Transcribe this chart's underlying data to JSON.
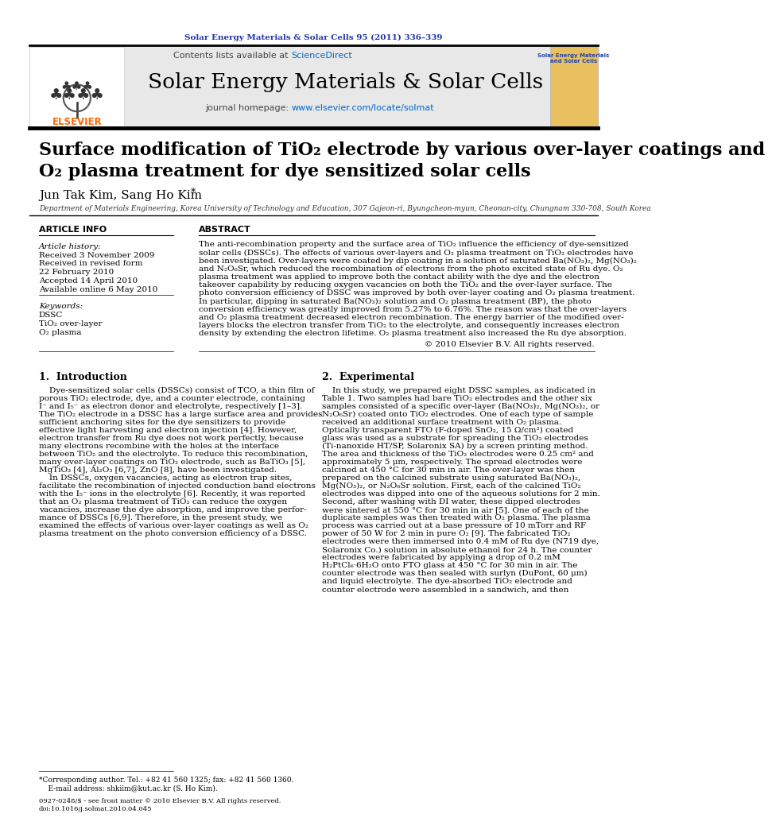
{
  "journal_ref": "Solar Energy Materials & Solar Cells 95 (2011) 336–339",
  "journal_name": "Solar Energy Materials & Solar Cells",
  "title_line1": "Surface modification of TiO₂ electrode by various over-layer coatings and",
  "title_line2": "O₂ plasma treatment for dye sensitized solar cells",
  "authors": "Jun Tak Kim, Sang Ho Kim",
  "affiliation": "Department of Materials Engineering, Korea University of Technology and Education, 307 Gajeon-ri, Byungcheon-myun, Cheonan-city, Chungnam 330-708, South Korea",
  "article_info_header": "ARTICLE INFO",
  "abstract_header": "ABSTRACT",
  "article_history_label": "Article history:",
  "received1": "Received 3 November 2009",
  "received_revised": "Received in revised form",
  "received_revised2": "22 February 2010",
  "accepted": "Accepted 14 April 2010",
  "available": "Available online 6 May 2010",
  "keywords_label": "Keywords:",
  "kw1": "DSSC",
  "kw2": "TiO₂ over-layer",
  "kw3": "O₂ plasma",
  "abstract_lines": [
    "The anti-recombination property and the surface area of TiO₂ influence the efficiency of dye-sensitized",
    "solar cells (DSSCs). The effects of various over-layers and O₂ plasma treatment on TiO₂ electrodes have",
    "been investigated. Over-layers were coated by dip coating in a solution of saturated Ba(NO₃)₂, Mg(NO₃)₂",
    "and N₂O₆Sr, which reduced the recombination of electrons from the photo excited state of Ru dye. O₂",
    "plasma treatment was applied to improve both the contact ability with the dye and the electron",
    "takeover capability by reducing oxygen vacancies on both the TiO₂ and the over-layer surface. The",
    "photo conversion efficiency of DSSC was improved by both over-layer coating and O₂ plasma treatment.",
    "In particular, dipping in saturated Ba(NO₃)₂ solution and O₂ plasma treatment (BP), the photo",
    "conversion efficiency was greatly improved from 5.27% to 6.76%. The reason was that the over-layers",
    "and O₂ plasma treatment decreased electron recombination. The energy barrier of the modified over-",
    "layers blocks the electron transfer from TiO₂ to the electrolyte, and consequently increases electron",
    "density by extending the electron lifetime. O₂ plasma treatment also increased the Ru dye absorption."
  ],
  "copyright": "© 2010 Elsevier B.V. All rights reserved.",
  "section1_header": "1.  Introduction",
  "section2_header": "2.  Experimental",
  "intro_lines": [
    "    Dye-sensitized solar cells (DSSCs) consist of TCO, a thin film of",
    "porous TiO₂ electrode, dye, and a counter electrode, containing",
    "I⁻ and I₅⁻ as electron donor and electrolyte, respectively [1–3].",
    "The TiO₂ electrode in a DSSC has a large surface area and provides",
    "sufficient anchoring sites for the dye sensitizers to provide",
    "effective light harvesting and electron injection [4]. However,",
    "electron transfer from Ru dye does not work perfectly, because",
    "many electrons recombine with the holes at the interface",
    "between TiO₂ and the electrolyte. To reduce this recombination,",
    "many over-layer coatings on TiO₂ electrode, such as BaTiO₃ [5],",
    "MgTiO₃ [4], Al₂O₃ [6,7], ZnO [8], have been investigated.",
    "    In DSSCs, oxygen vacancies, acting as electron trap sites,",
    "facilitate the recombination of injected conduction band electrons",
    "with the I₅⁻ ions in the electrolyte [6]. Recently, it was reported",
    "that an O₂ plasma treatment of TiO₂ can reduce the oxygen",
    "vacancies, increase the dye absorption, and improve the perfor-",
    "mance of DSSCs [6,9]. Therefore, in the present study, we",
    "examined the effects of various over-layer coatings as well as O₂",
    "plasma treatment on the photo conversion efficiency of a DSSC."
  ],
  "exp_lines": [
    "    In this study, we prepared eight DSSC samples, as indicated in",
    "Table 1. Two samples had bare TiO₂ electrodes and the other six",
    "samples consisted of a specific over-layer (Ba(NO₃)₂, Mg(NO₃)₂, or",
    "N₂O₆Sr) coated onto TiO₂ electrodes. One of each type of sample",
    "received an additional surface treatment with O₂ plasma.",
    "Optically transparent FTO (F-doped SnO₂, 15 Ω/cm²) coated",
    "glass was used as a substrate for spreading the TiO₂ electrodes",
    "(Ti-nanoxide HT/SP, Solaronix SA) by a screen printing method.",
    "The area and thickness of the TiO₂ electrodes were 0.25 cm² and",
    "approximately 5 μm, respectively. The spread electrodes were",
    "calcined at 450 °C for 30 min in air. The over-layer was then",
    "prepared on the calcined substrate using saturated Ba(NO₃)₂,",
    "Mg(NO₃)₂, or N₂O₆Sr solution. First, each of the calcined TiO₂",
    "electrodes was dipped into one of the aqueous solutions for 2 min.",
    "Second, after washing with DI water, these dipped electrodes",
    "were sintered at 550 °C for 30 min in air [5]. One of each of the",
    "duplicate samples was then treated with O₂ plasma. The plasma",
    "process was carried out at a base pressure of 10 mTorr and RF",
    "power of 50 W for 2 min in pure O₂ [9]. The fabricated TiO₂",
    "electrodes were then immersed into 0.4 mM of Ru dye (N719 dye,",
    "Solaronix Co.) solution in absolute ethanol for 24 h. The counter",
    "electrodes were fabricated by applying a drop of 0.2 mM",
    "H₂PtCl₆·6H₂O onto FTO glass at 450 °C for 30 min in air. The",
    "counter electrode was then sealed with surlyn (DuPont, 60 μm)",
    "and liquid electrolyte. The dye-absorbed TiO₂ electrode and",
    "counter electrode were assembled in a sandwich, and then"
  ],
  "footnote_line1": "*Corresponding author. Tel.: +82 41 560 1325; fax: +82 41 560 1360.",
  "footnote_line2": "    E-mail address: shkiim@kut.ac.kr (S. Ho Kim).",
  "issn_line1": "0927-0248/$ - see front matter © 2010 Elsevier B.V. All rights reserved.",
  "issn_line2": "doi:10.1016/j.solmat.2010.04.045",
  "bg_header": "#e8e8e8",
  "color_journal_ref": "#2233aa",
  "color_sciencedirect": "#0066cc",
  "color_homepage": "#0066cc",
  "color_elsevier": "#FF6600",
  "color_cover_text": "#2244aa",
  "color_cover_bg": "#e8c060"
}
